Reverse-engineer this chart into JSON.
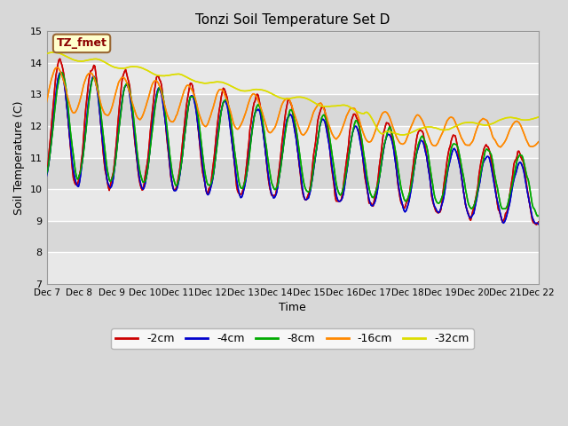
{
  "title": "Tonzi Soil Temperature Set D",
  "xlabel": "Time",
  "ylabel": "Soil Temperature (C)",
  "ylim": [
    7.0,
    15.0
  ],
  "yticks": [
    7.0,
    8.0,
    9.0,
    10.0,
    11.0,
    12.0,
    13.0,
    14.0,
    15.0
  ],
  "bg_color": "#d8d8d8",
  "plot_bg_color": "#e8e8e8",
  "series": [
    {
      "label": "-2cm",
      "color": "#cc0000"
    },
    {
      "label": "-4cm",
      "color": "#0000cc"
    },
    {
      "label": "-8cm",
      "color": "#00aa00"
    },
    {
      "label": "-16cm",
      "color": "#ff8800"
    },
    {
      "label": "-32cm",
      "color": "#dddd00"
    }
  ],
  "n_points": 480,
  "x_start": 7.0,
  "x_end": 22.0,
  "xtick_positions": [
    7,
    8,
    9,
    10,
    11,
    12,
    13,
    14,
    15,
    16,
    17,
    18,
    19,
    20,
    21,
    22
  ],
  "xtick_labels": [
    "Dec 7",
    "Dec 8",
    "Dec 9",
    "Dec 10",
    "Dec 11",
    "Dec 12",
    "Dec 13",
    "Dec 14",
    "Dec 15",
    "Dec 16",
    "Dec 17",
    "Dec 18",
    "Dec 19",
    "Dec 20",
    "Dec 21",
    "Dec 22"
  ],
  "legend_label_box": "TZ_fmet",
  "legend_box_bg": "#ffffcc",
  "legend_box_border": "#996633"
}
